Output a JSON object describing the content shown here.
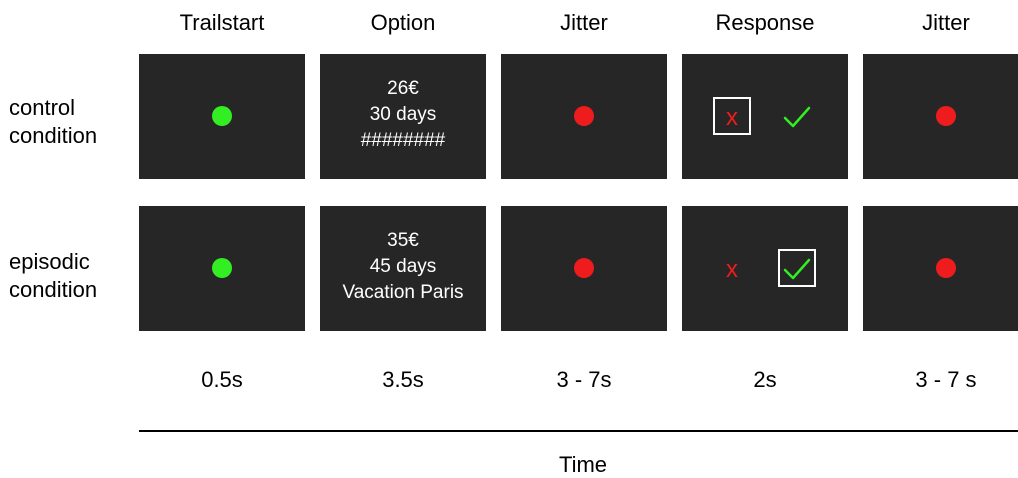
{
  "columns": [
    {
      "header": "Trailstart",
      "duration": "0.5s"
    },
    {
      "header": "Option",
      "duration": "3.5s"
    },
    {
      "header": "Jitter",
      "duration": "3 - 7s"
    },
    {
      "header": "Response",
      "duration": "2s"
    },
    {
      "header": "Jitter",
      "duration": "3 - 7 s"
    }
  ],
  "rows": [
    {
      "label_line1": "control",
      "label_line2": "condition",
      "option": {
        "amount": "26€",
        "delay": "30 days",
        "cue": "########"
      },
      "selected_response": "reject"
    },
    {
      "label_line1": "episodic",
      "label_line2": "condition",
      "option": {
        "amount": "35€",
        "delay": "45 days",
        "cue": "Vacation Paris"
      },
      "selected_response": "accept"
    }
  ],
  "response_marks": {
    "reject": "x",
    "accept_icon": "checkmark-icon"
  },
  "axis": {
    "label": "Time"
  },
  "colors": {
    "screen": "#262626",
    "start_dot": "#33ee22",
    "jitter_dot": "#ee1c1c",
    "reject_mark": "#ee1c1c",
    "accept_mark": "#33ee22",
    "selection_box": "#ffffff"
  }
}
